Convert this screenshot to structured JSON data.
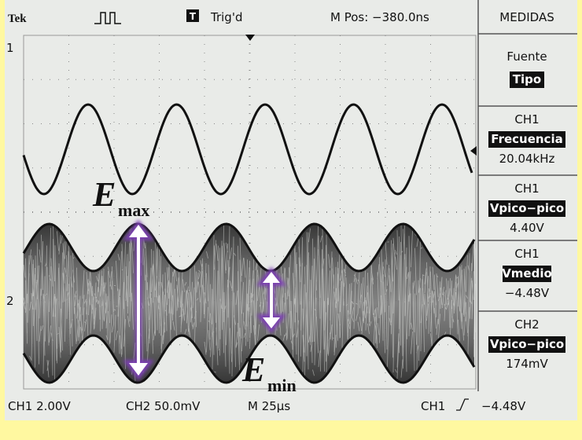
{
  "header": {
    "brand": "Tek",
    "trigger_badge": "T",
    "trigger_state": "Trig'd",
    "position": "M Pos: −380.0ns",
    "menu_title": "MEDIDAS"
  },
  "menu": [
    {
      "label": "Fuente",
      "highlight": "Tipo"
    },
    {
      "source": "CH1",
      "measure": "Frecuencia",
      "value": "20.04kHz"
    },
    {
      "source": "CH1",
      "measure": "Vpico−pico",
      "value": "4.40V"
    },
    {
      "source": "CH1",
      "measure": "Vmedio",
      "value": "−4.48V"
    },
    {
      "source": "CH2",
      "measure": "Vpico−pico",
      "value": "174mV"
    }
  ],
  "markers": {
    "ch1": "1",
    "ch2": "2"
  },
  "annotations": {
    "emax": {
      "symbol": "E",
      "sub": "max"
    },
    "emin": {
      "symbol": "E",
      "sub": "min"
    }
  },
  "footer": {
    "ch1": "CH1 2.00V",
    "ch2": "CH2 50.0mV",
    "time": "M 25μs",
    "trigger_source": "CH1",
    "trigger_level": "−4.48V"
  }
}
